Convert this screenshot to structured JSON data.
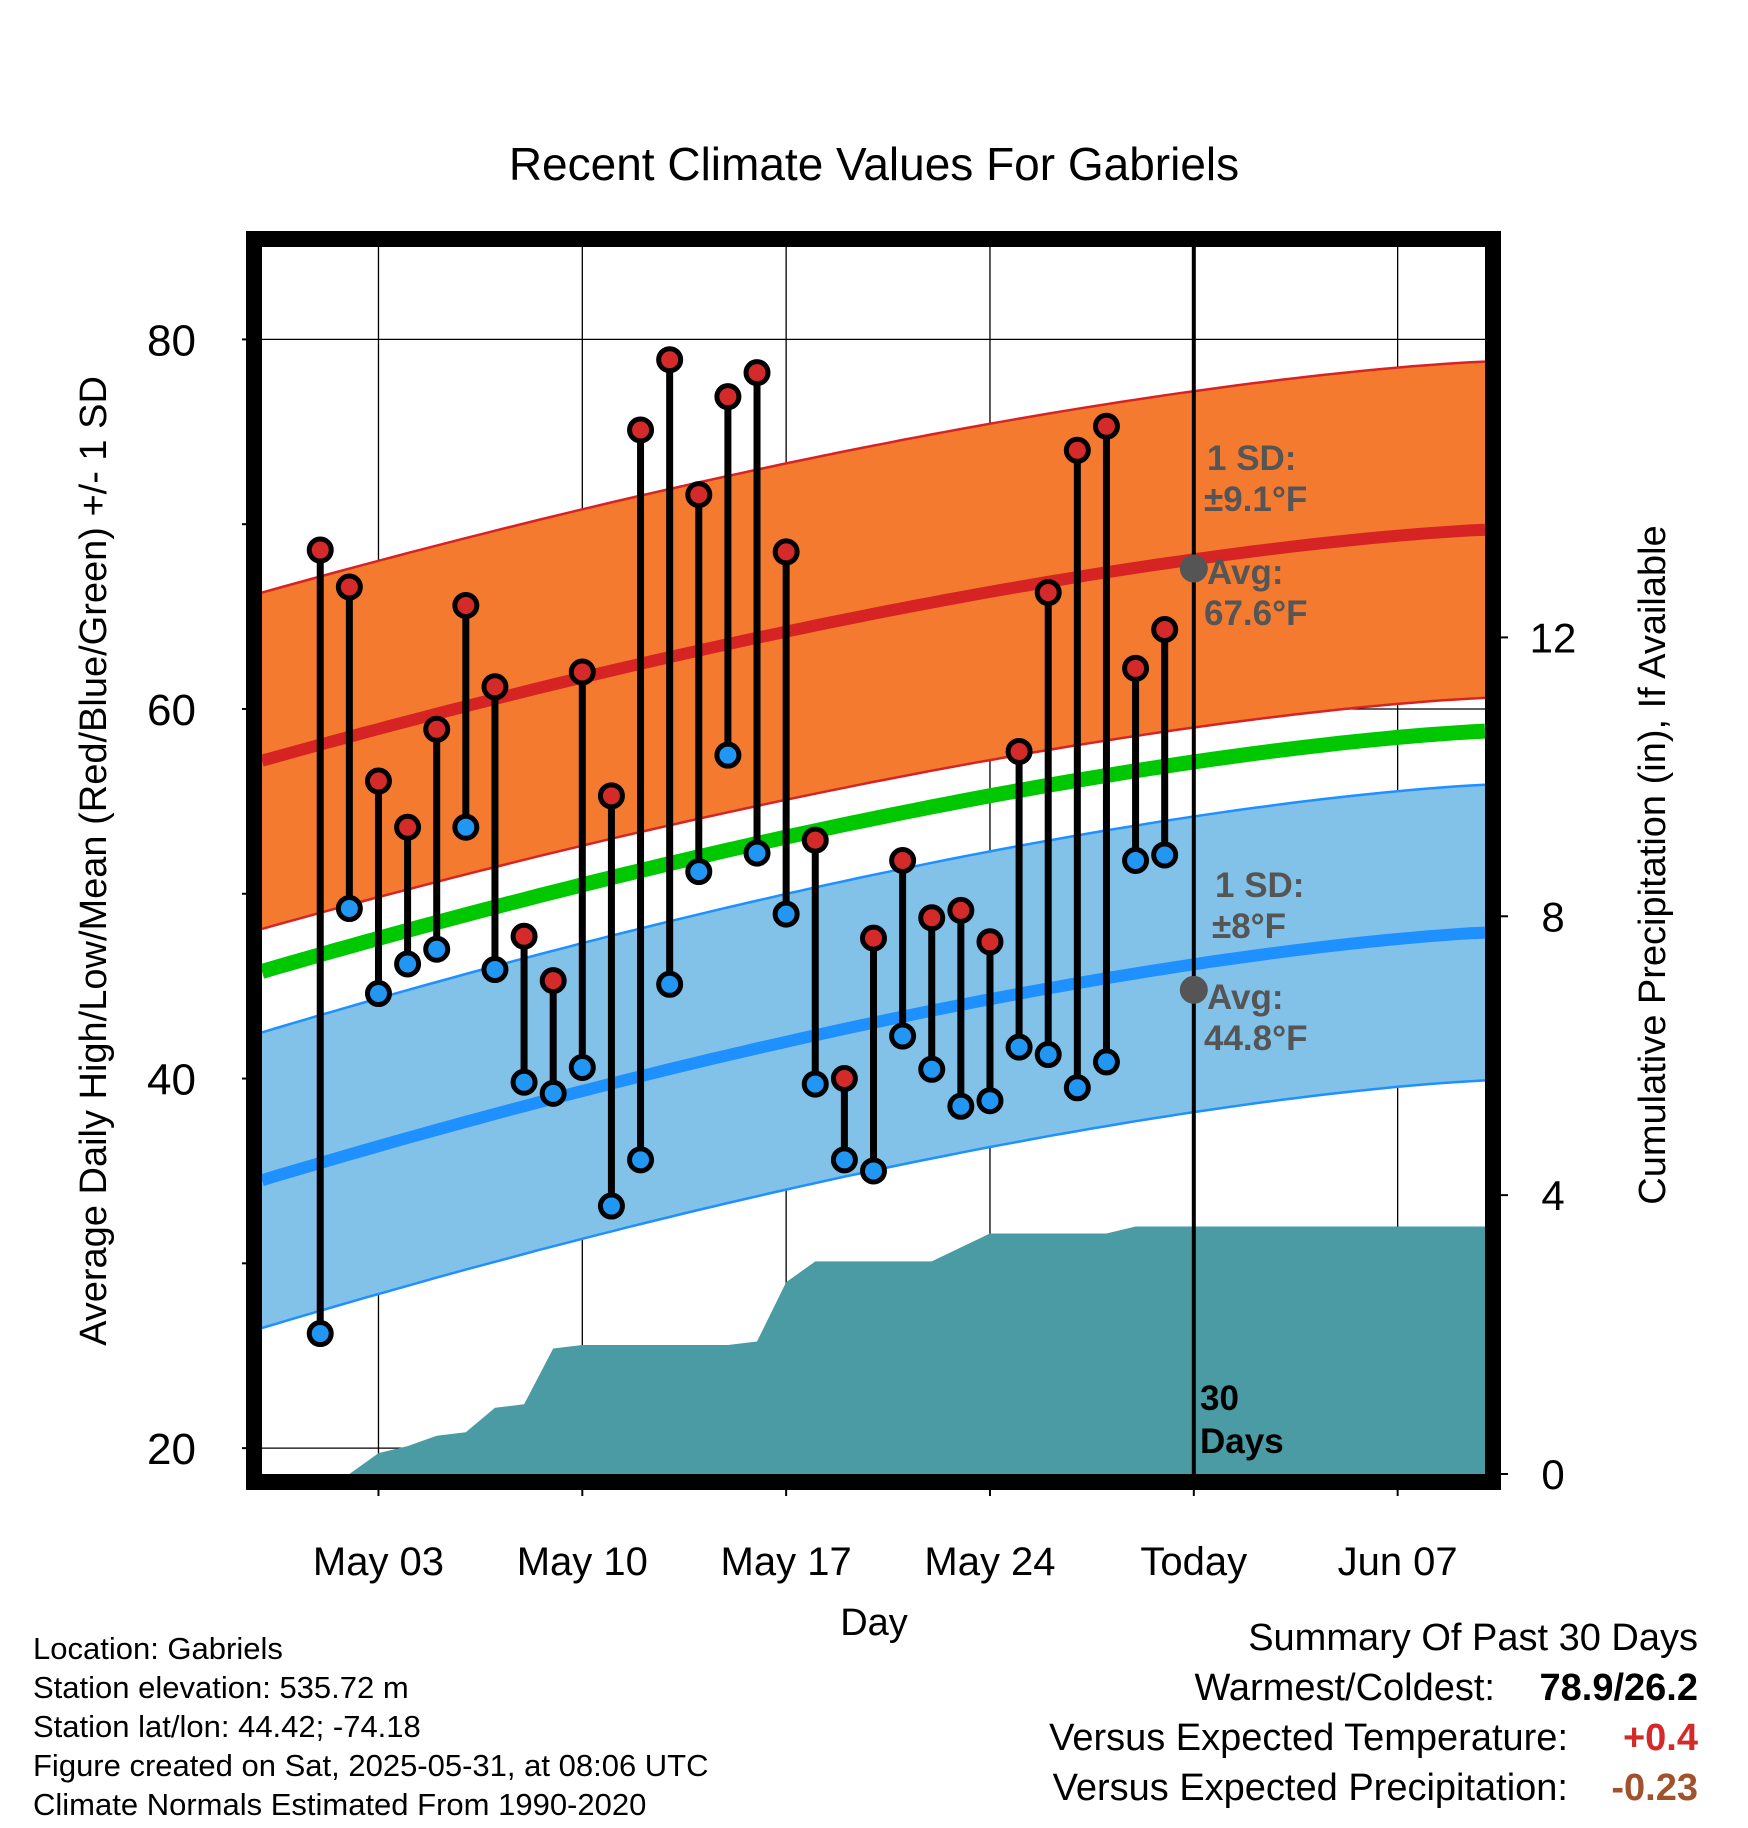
{
  "chart_data": {
    "type": "line",
    "title": "Recent Climate Values For Gabriels",
    "xlabel": "Day",
    "ylabel": "Average Daily High/Low/Mean (Red/Blue/Green) +/- 1 SD",
    "y2label": "Cumulative Precipitation (in), If Available",
    "ylim": [
      18.6,
      85
    ],
    "y2lim": [
      0,
      17.6
    ],
    "yticks": [
      "20",
      "40",
      "60",
      "80"
    ],
    "y2ticks": [
      "0",
      "4",
      "8",
      "12"
    ],
    "xlim": [
      "2025-04-29",
      "2025-06-10"
    ],
    "xticks": [
      {
        "date": "2025-05-03",
        "label": "May 03"
      },
      {
        "date": "2025-05-10",
        "label": "May 10"
      },
      {
        "date": "2025-05-17",
        "label": "May 17"
      },
      {
        "date": "2025-05-24",
        "label": "May 24"
      },
      {
        "date": "2025-05-31",
        "label": "Today"
      },
      {
        "date": "2025-06-07",
        "label": "Jun 07"
      }
    ],
    "grid": true,
    "today": "2025-05-31",
    "days": [
      "2025-05-01",
      "2025-05-02",
      "2025-05-03",
      "2025-05-04",
      "2025-05-05",
      "2025-05-06",
      "2025-05-07",
      "2025-05-08",
      "2025-05-09",
      "2025-05-10",
      "2025-05-11",
      "2025-05-12",
      "2025-05-13",
      "2025-05-14",
      "2025-05-15",
      "2025-05-16",
      "2025-05-17",
      "2025-05-18",
      "2025-05-19",
      "2025-05-20",
      "2025-05-21",
      "2025-05-22",
      "2025-05-23",
      "2025-05-24",
      "2025-05-25",
      "2025-05-26",
      "2025-05-27",
      "2025-05-28",
      "2025-05-29",
      "2025-05-30"
    ],
    "daily_high": [
      68.6,
      66.6,
      56.1,
      53.6,
      58.9,
      65.6,
      61.2,
      47.7,
      45.3,
      62.0,
      55.3,
      75.1,
      78.9,
      71.6,
      76.9,
      78.2,
      68.5,
      52.9,
      40.0,
      47.6,
      51.8,
      48.7,
      49.1,
      47.4,
      57.7,
      66.3,
      74.0,
      75.3,
      62.2,
      64.3
    ],
    "daily_low": [
      26.2,
      49.2,
      44.6,
      46.2,
      47.0,
      53.6,
      45.9,
      39.8,
      39.2,
      40.6,
      33.1,
      35.6,
      45.1,
      51.2,
      57.5,
      52.2,
      48.9,
      39.7,
      35.6,
      35.0,
      42.3,
      40.5,
      38.5,
      38.8,
      41.7,
      41.3,
      39.5,
      40.9,
      51.8,
      52.1
    ],
    "normals": {
      "start": "2025-04-29",
      "end": "2025-06-10",
      "high_avg": [
        57.2,
        69.7
      ],
      "high_sd": 9.1,
      "low_avg": [
        34.5,
        47.9
      ],
      "low_sd": 8.0,
      "mean_avg": [
        45.8,
        58.8
      ]
    },
    "precip_cumulative": [
      {
        "date": "2025-05-02",
        "value": 0.0
      },
      {
        "date": "2025-05-03",
        "value": 0.3
      },
      {
        "date": "2025-05-04",
        "value": 0.4
      },
      {
        "date": "2025-05-05",
        "value": 0.55
      },
      {
        "date": "2025-05-06",
        "value": 0.6
      },
      {
        "date": "2025-05-07",
        "value": 0.95
      },
      {
        "date": "2025-05-08",
        "value": 1.0
      },
      {
        "date": "2025-05-09",
        "value": 1.8
      },
      {
        "date": "2025-05-10",
        "value": 1.85
      },
      {
        "date": "2025-05-11",
        "value": 1.85
      },
      {
        "date": "2025-05-12",
        "value": 1.85
      },
      {
        "date": "2025-05-13",
        "value": 1.85
      },
      {
        "date": "2025-05-14",
        "value": 1.85
      },
      {
        "date": "2025-05-15",
        "value": 1.85
      },
      {
        "date": "2025-05-16",
        "value": 1.9
      },
      {
        "date": "2025-05-17",
        "value": 2.75
      },
      {
        "date": "2025-05-18",
        "value": 3.05
      },
      {
        "date": "2025-05-19",
        "value": 3.05
      },
      {
        "date": "2025-05-20",
        "value": 3.05
      },
      {
        "date": "2025-05-21",
        "value": 3.05
      },
      {
        "date": "2025-05-22",
        "value": 3.05
      },
      {
        "date": "2025-05-23",
        "value": 3.25
      },
      {
        "date": "2025-05-24",
        "value": 3.45
      },
      {
        "date": "2025-05-25",
        "value": 3.45
      },
      {
        "date": "2025-05-26",
        "value": 3.45
      },
      {
        "date": "2025-05-27",
        "value": 3.45
      },
      {
        "date": "2025-05-28",
        "value": 3.45
      },
      {
        "date": "2025-05-29",
        "value": 3.55
      },
      {
        "date": "2025-05-30",
        "value": 3.55
      },
      {
        "date": "2025-05-31",
        "value": 3.55
      },
      {
        "date": "2025-06-10",
        "value": 3.55
      }
    ],
    "annotations": {
      "high_sd_label": "1 SD:",
      "high_sd_value": "±9.1°F",
      "high_avg_label": "Avg:",
      "high_avg_value": "67.6°F",
      "high_avg_point": 67.6,
      "low_sd_label": "1 SD:",
      "low_sd_value": "±8°F",
      "low_avg_label": "Avg:",
      "low_avg_value": "44.8°F",
      "low_avg_point": 44.8,
      "days_count": "30",
      "days_word": "Days"
    },
    "colors": {
      "high_marker": "#d42a2a",
      "low_marker": "#2196f3",
      "high_band": "#f47a30",
      "high_band_edge": "#d62424",
      "high_line": "#d62424",
      "low_band": "#82c1e8",
      "low_band_edge": "#1e90ff",
      "low_line": "#1e90ff",
      "mean_line": "#00c800",
      "precip": "#4a9ba4",
      "annotation_text": "#555555"
    }
  },
  "info": {
    "location": "Location: Gabriels",
    "elevation": "Station elevation: 535.72 m",
    "latlon": "Station lat/lon: 44.42; -74.18",
    "created": "Figure created on Sat, 2025-05-31, at 08:06 UTC",
    "normals": "Climate Normals Estimated From 1990-2020"
  },
  "summary": {
    "title": "Summary Of Past 30 Days",
    "warmest_label": "Warmest/Coldest:",
    "warmest_value": "78.9/26.2",
    "temp_label": "Versus Expected Temperature:",
    "temp_value": "+0.4",
    "temp_color": "#d42a2a",
    "precip_label": "Versus Expected Precipitation:",
    "precip_value": "-0.23",
    "precip_color": "#a0522d"
  }
}
